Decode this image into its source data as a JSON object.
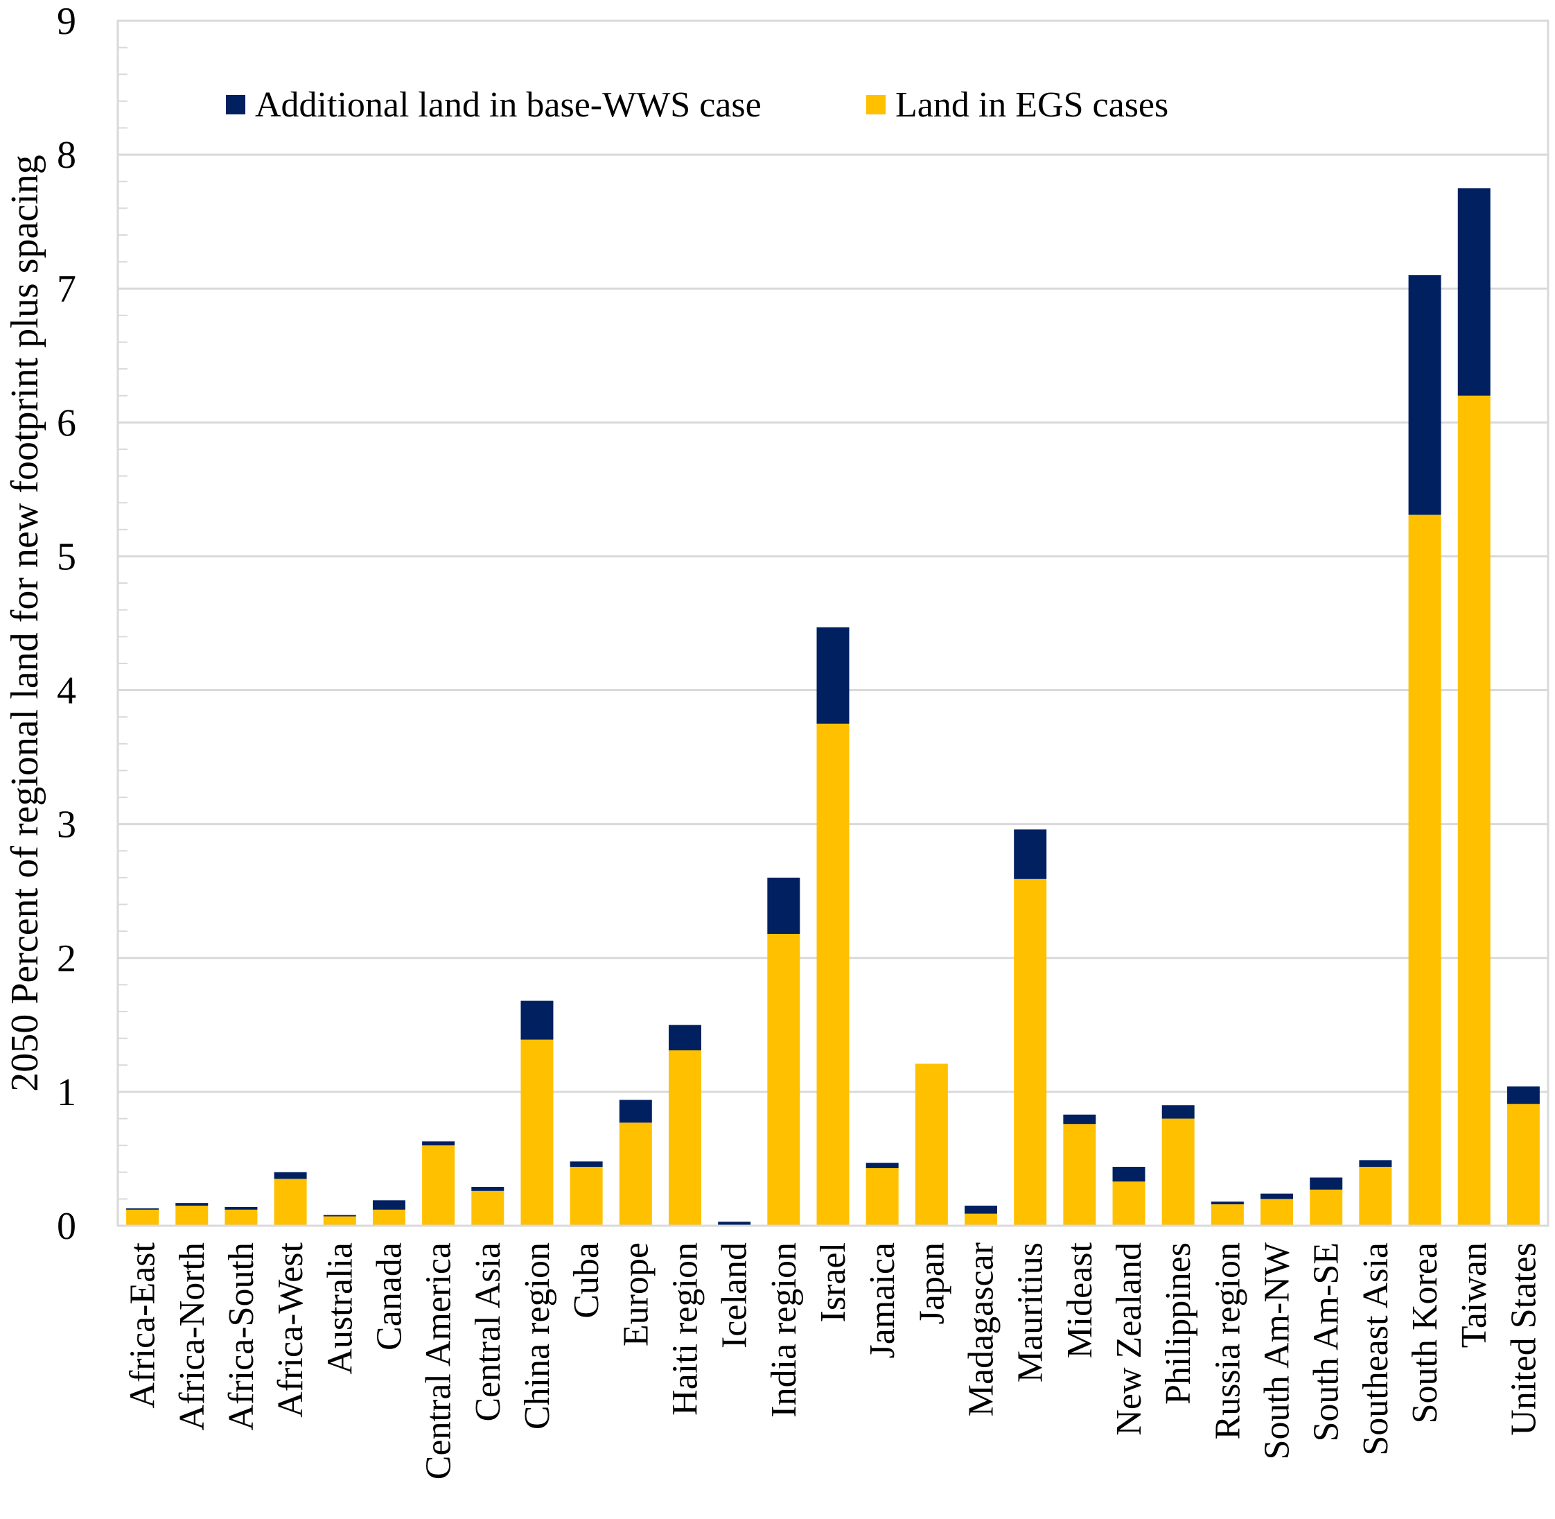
{
  "chart_data": {
    "type": "bar",
    "stacked": true,
    "title": "",
    "xlabel": "",
    "ylabel": "2050 Percent of regional land for new footprint plus spacing",
    "ylim": [
      0,
      9
    ],
    "yticks": [
      "0",
      "1",
      "2",
      "3",
      "4",
      "5",
      "6",
      "7",
      "8",
      "9"
    ],
    "grid": true,
    "legend_position": "top-left",
    "categories": [
      "Africa-East",
      "Africa-North",
      "Africa-South",
      "Africa-West",
      "Australia",
      "Canada",
      "Central America",
      "Central Asia",
      "China region",
      "Cuba",
      "Europe",
      "Haiti region",
      "Iceland",
      "India region",
      "Israel",
      "Jamaica",
      "Japan",
      "Madagascar",
      "Mauritius",
      "Mideast",
      "New Zealand",
      "Philippines",
      "Russia region",
      "South Am-NW",
      "South Am-SE",
      "Southeast Asia",
      "South Korea",
      "Taiwan",
      "United States"
    ],
    "series": [
      {
        "name": "Land in EGS cases",
        "color": "#FFC000",
        "values": [
          0.12,
          0.15,
          0.12,
          0.35,
          0.07,
          0.12,
          0.6,
          0.26,
          1.39,
          0.44,
          0.77,
          1.31,
          0.0,
          2.18,
          3.75,
          0.43,
          1.21,
          0.09,
          2.59,
          0.76,
          0.33,
          0.8,
          0.16,
          0.2,
          0.27,
          0.44,
          5.31,
          6.2,
          0.91
        ]
      },
      {
        "name": "Additional land in base-WWS case",
        "color": "#002060",
        "values": [
          0.01,
          0.02,
          0.02,
          0.05,
          0.01,
          0.07,
          0.03,
          0.03,
          0.29,
          0.04,
          0.17,
          0.19,
          0.03,
          0.42,
          0.72,
          0.04,
          0.0,
          0.06,
          0.37,
          0.07,
          0.11,
          0.1,
          0.02,
          0.04,
          0.09,
          0.05,
          1.79,
          1.55,
          0.13
        ]
      }
    ]
  }
}
